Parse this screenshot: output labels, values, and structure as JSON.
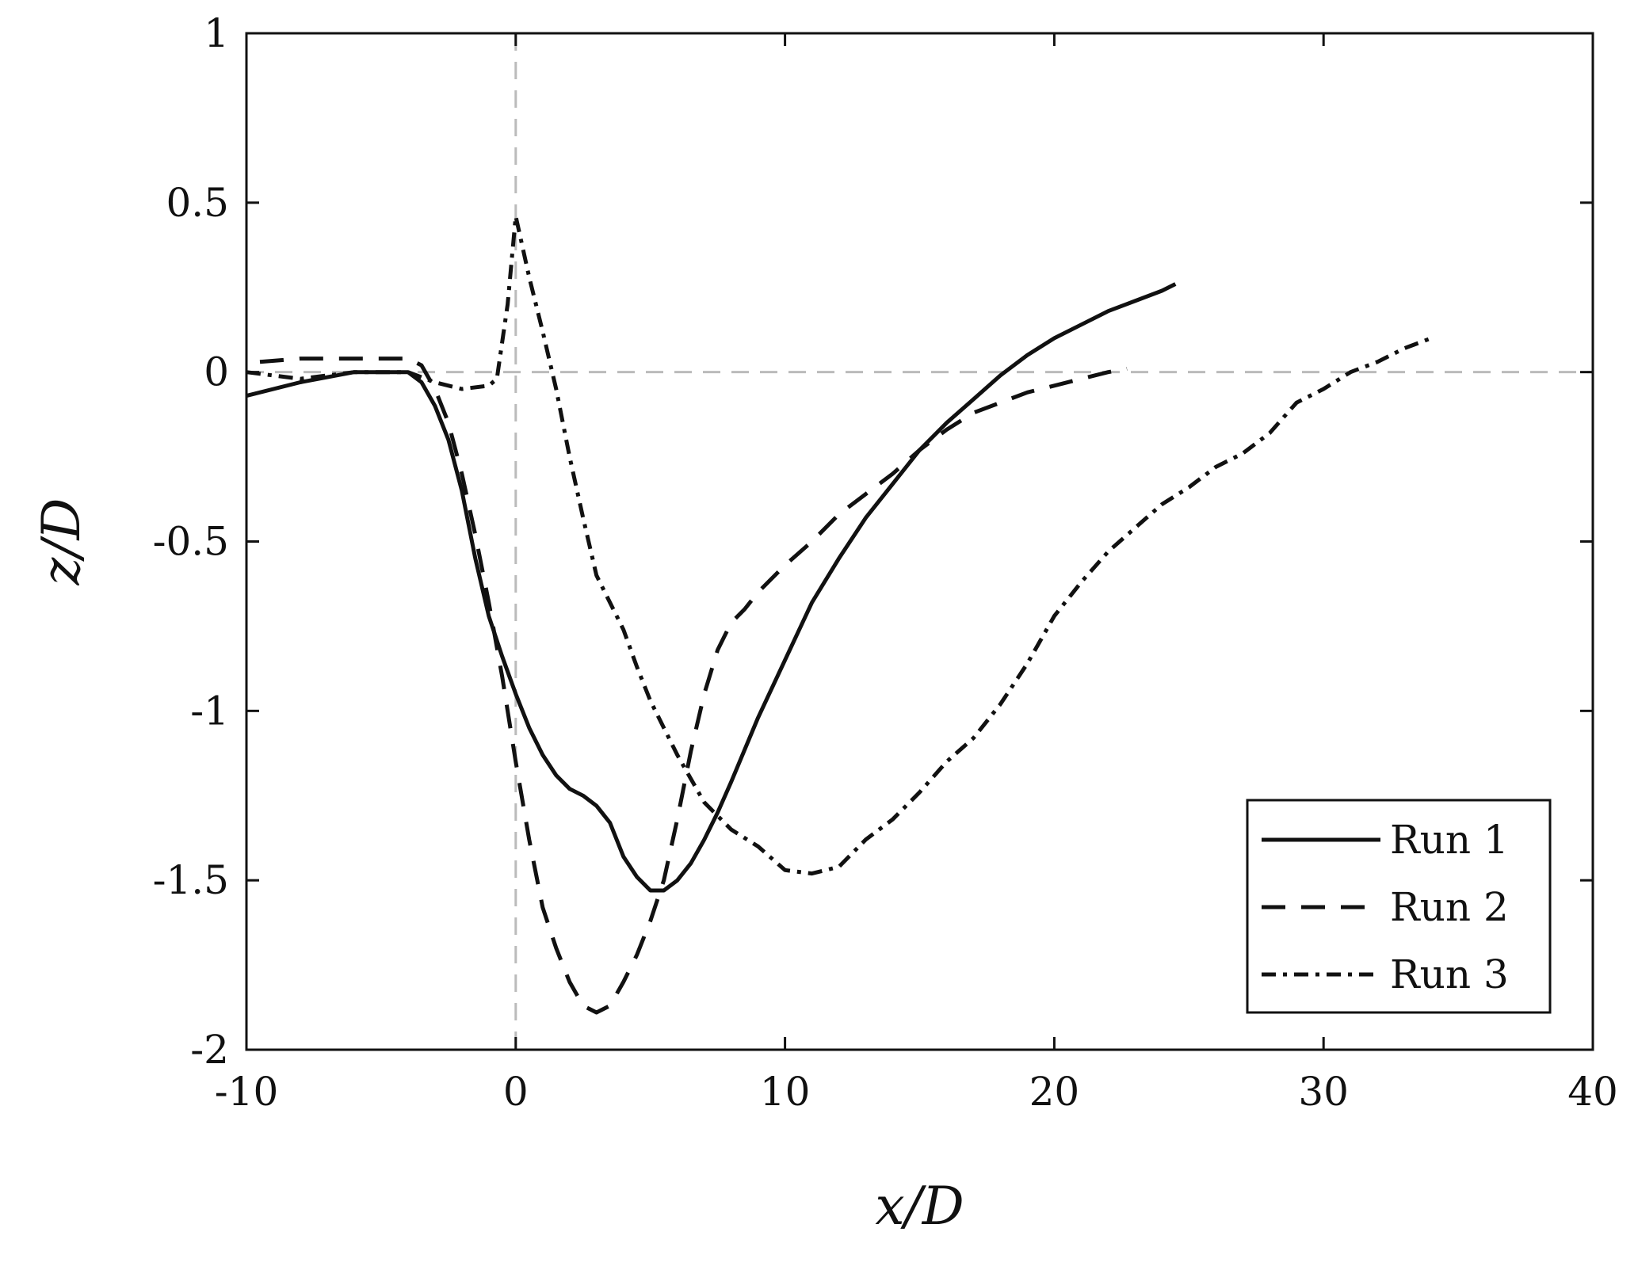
{
  "chart_data": {
    "type": "line",
    "xlabel": "x/D",
    "ylabel": "z/D",
    "xlim": [
      -10,
      40
    ],
    "ylim": [
      -2,
      1
    ],
    "xticks": [
      -10,
      0,
      10,
      20,
      30,
      40
    ],
    "yticks": [
      1,
      0.5,
      0,
      -0.5,
      -1,
      -1.5,
      -2
    ],
    "xtick_labels": [
      "-10",
      "0",
      "10",
      "20",
      "30",
      "40"
    ],
    "ytick_labels": [
      "1",
      "0.5",
      "0",
      "-0.5",
      "-1",
      "-1.5",
      "-2"
    ],
    "grid": false,
    "reference_lines": [
      {
        "orientation": "horizontal",
        "value": 0,
        "style": "dashed",
        "color": "#bbbbbb"
      },
      {
        "orientation": "vertical",
        "value": 0,
        "style": "dashed",
        "color": "#bbbbbb"
      }
    ],
    "legend": {
      "placement": "bottom-right"
    },
    "series": [
      {
        "name": "Run 1",
        "style": "solid",
        "color": "#111111",
        "x": [
          -10,
          -8,
          -6,
          -5,
          -4,
          -3.5,
          -3,
          -2.5,
          -2,
          -1.5,
          -1,
          -0.5,
          0,
          0.5,
          1,
          1.5,
          2,
          2.5,
          3,
          3.5,
          4,
          4.5,
          5,
          5.5,
          6,
          6.5,
          7,
          7.5,
          8,
          9,
          10,
          11,
          12,
          13,
          14,
          15,
          16,
          17,
          18,
          19,
          20,
          21,
          22,
          23,
          24,
          24.5
        ],
        "y": [
          -0.07,
          -0.03,
          0.0,
          0.0,
          0.0,
          -0.03,
          -0.1,
          -0.2,
          -0.35,
          -0.55,
          -0.72,
          -0.84,
          -0.95,
          -1.05,
          -1.13,
          -1.19,
          -1.23,
          -1.25,
          -1.28,
          -1.33,
          -1.43,
          -1.49,
          -1.53,
          -1.53,
          -1.5,
          -1.45,
          -1.38,
          -1.3,
          -1.21,
          -1.02,
          -0.85,
          -0.68,
          -0.55,
          -0.43,
          -0.33,
          -0.23,
          -0.15,
          -0.08,
          -0.01,
          0.05,
          0.1,
          0.14,
          0.18,
          0.21,
          0.24,
          0.26
        ]
      },
      {
        "name": "Run 2",
        "style": "dashed",
        "color": "#111111",
        "x": [
          -9.5,
          -8,
          -6,
          -4,
          -3.5,
          -3,
          -2.5,
          -2,
          -1.5,
          -1,
          -0.5,
          0,
          0.5,
          1,
          1.5,
          2,
          2.5,
          3,
          3.5,
          4,
          4.5,
          5,
          5.5,
          6,
          6.5,
          7,
          7.5,
          8,
          8.5,
          9,
          10,
          11,
          12,
          13,
          14,
          15,
          16,
          17,
          18,
          19,
          20,
          21,
          22,
          22.7
        ],
        "y": [
          0.03,
          0.04,
          0.04,
          0.04,
          0.02,
          -0.05,
          -0.15,
          -0.3,
          -0.48,
          -0.68,
          -0.9,
          -1.15,
          -1.38,
          -1.58,
          -1.7,
          -1.8,
          -1.87,
          -1.89,
          -1.87,
          -1.8,
          -1.72,
          -1.62,
          -1.5,
          -1.32,
          -1.12,
          -0.95,
          -0.82,
          -0.74,
          -0.7,
          -0.65,
          -0.57,
          -0.5,
          -0.42,
          -0.36,
          -0.3,
          -0.23,
          -0.17,
          -0.12,
          -0.09,
          -0.06,
          -0.04,
          -0.02,
          0.0,
          0.01
        ]
      },
      {
        "name": "Run 3",
        "style": "dashdot",
        "color": "#111111",
        "x": [
          -10,
          -8,
          -6,
          -4,
          -3,
          -2,
          -1,
          -0.7,
          -0.3,
          0,
          0.5,
          1,
          1.5,
          2,
          2.5,
          3,
          3.5,
          4,
          4.5,
          5,
          5.5,
          6,
          6.5,
          7,
          8,
          9,
          10,
          11,
          12,
          13,
          14,
          15,
          16,
          17,
          18,
          19,
          20,
          21,
          22,
          23,
          24,
          25,
          26,
          27,
          28,
          29,
          30,
          31,
          32,
          33,
          34
        ],
        "y": [
          0.0,
          -0.02,
          0.0,
          0.0,
          -0.03,
          -0.05,
          -0.04,
          -0.02,
          0.2,
          0.46,
          0.28,
          0.12,
          -0.05,
          -0.25,
          -0.43,
          -0.6,
          -0.68,
          -0.76,
          -0.87,
          -0.97,
          -1.05,
          -1.13,
          -1.2,
          -1.27,
          -1.35,
          -1.4,
          -1.47,
          -1.48,
          -1.46,
          -1.38,
          -1.32,
          -1.24,
          -1.15,
          -1.08,
          -0.98,
          -0.86,
          -0.72,
          -0.62,
          -0.53,
          -0.46,
          -0.39,
          -0.34,
          -0.28,
          -0.24,
          -0.18,
          -0.09,
          -0.05,
          0.0,
          0.03,
          0.07,
          0.1
        ]
      }
    ]
  }
}
